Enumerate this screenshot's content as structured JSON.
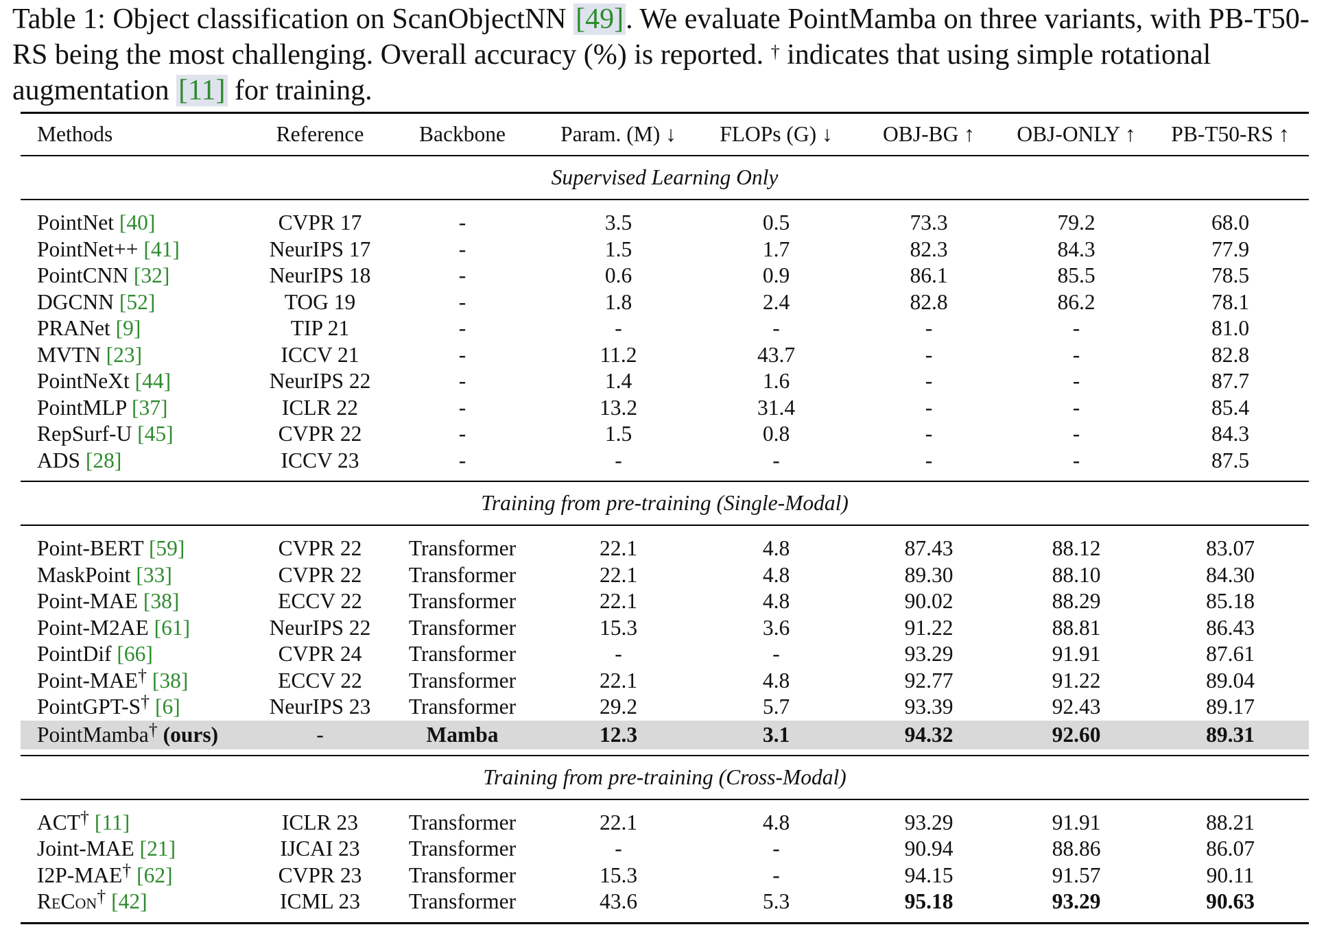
{
  "caption": {
    "prefix": "Table 1: Object classification on ScanObjectNN ",
    "cite1": "[49]",
    "mid": ". We evaluate PointMamba on three variants, with PB-T50-RS being the most challenging. Overall accuracy (%) is reported. ",
    "dagger": "†",
    "mid2": " indicates that using simple rotational augmentation ",
    "cite2": "[11]",
    "suffix": " for training."
  },
  "headers": [
    "Methods",
    "Reference",
    "Backbone",
    "Param. (M) ↓",
    "FLOPs (G) ↓",
    "OBJ-BG ↑",
    "OBJ-ONLY ↑",
    "PB-T50-RS ↑"
  ],
  "sections": [
    {
      "title": "Supervised Learning Only"
    },
    {
      "title": "Training from pre-training (Single-Modal)"
    },
    {
      "title": "Training from pre-training (Cross-Modal)"
    }
  ],
  "supervised": [
    {
      "name": "PointNet",
      "cite": "[40]",
      "ref": "CVPR 17",
      "bb": "-",
      "param": "3.5",
      "flops": "0.5",
      "bg": "73.3",
      "only": "79.2",
      "pb": "68.0"
    },
    {
      "name": "PointNet++",
      "cite": "[41]",
      "ref": "NeurIPS 17",
      "bb": "-",
      "param": "1.5",
      "flops": "1.7",
      "bg": "82.3",
      "only": "84.3",
      "pb": "77.9"
    },
    {
      "name": "PointCNN",
      "cite": "[32]",
      "ref": "NeurIPS 18",
      "bb": "-",
      "param": "0.6",
      "flops": "0.9",
      "bg": "86.1",
      "only": "85.5",
      "pb": "78.5"
    },
    {
      "name": "DGCNN",
      "cite": "[52]",
      "ref": "TOG 19",
      "bb": "-",
      "param": "1.8",
      "flops": "2.4",
      "bg": "82.8",
      "only": "86.2",
      "pb": "78.1"
    },
    {
      "name": "PRANet",
      "cite": "[9]",
      "ref": "TIP 21",
      "bb": "-",
      "param": "-",
      "flops": "-",
      "bg": "-",
      "only": "-",
      "pb": "81.0"
    },
    {
      "name": "MVTN",
      "cite": "[23]",
      "ref": "ICCV 21",
      "bb": "-",
      "param": "11.2",
      "flops": "43.7",
      "bg": "-",
      "only": "-",
      "pb": "82.8"
    },
    {
      "name": "PointNeXt",
      "cite": "[44]",
      "ref": "NeurIPS 22",
      "bb": "-",
      "param": "1.4",
      "flops": "1.6",
      "bg": "-",
      "only": "-",
      "pb": "87.7"
    },
    {
      "name": "PointMLP",
      "cite": "[37]",
      "ref": "ICLR 22",
      "bb": "-",
      "param": "13.2",
      "flops": "31.4",
      "bg": "-",
      "only": "-",
      "pb": "85.4"
    },
    {
      "name": "RepSurf-U",
      "cite": "[45]",
      "ref": "CVPR 22",
      "bb": "-",
      "param": "1.5",
      "flops": "0.8",
      "bg": "-",
      "only": "-",
      "pb": "84.3"
    },
    {
      "name": "ADS",
      "cite": "[28]",
      "ref": "ICCV 23",
      "bb": "-",
      "param": "-",
      "flops": "-",
      "bg": "-",
      "only": "-",
      "pb": "87.5"
    }
  ],
  "single": [
    {
      "name": "Point-BERT",
      "cite": "[59]",
      "ref": "CVPR 22",
      "bb": "Transformer",
      "param": "22.1",
      "flops": "4.8",
      "bg": "87.43",
      "only": "88.12",
      "pb": "83.07"
    },
    {
      "name": "MaskPoint",
      "cite": "[33]",
      "ref": "CVPR 22",
      "bb": "Transformer",
      "param": "22.1",
      "flops": "4.8",
      "bg": "89.30",
      "only": "88.10",
      "pb": "84.30"
    },
    {
      "name": "Point-MAE",
      "cite": "[38]",
      "ref": "ECCV 22",
      "bb": "Transformer",
      "param": "22.1",
      "flops": "4.8",
      "bg": "90.02",
      "only": "88.29",
      "pb": "85.18"
    },
    {
      "name": "Point-M2AE",
      "cite": "[61]",
      "ref": "NeurIPS 22",
      "bb": "Transformer",
      "param": "15.3",
      "flops": "3.6",
      "bg": "91.22",
      "only": "88.81",
      "pb": "86.43"
    },
    {
      "name": "PointDif",
      "cite": "[66]",
      "ref": "CVPR 24",
      "bb": "Transformer",
      "param": "-",
      "flops": "-",
      "bg": "93.29",
      "only": "91.91",
      "pb": "87.61"
    },
    {
      "name": "Point-MAE",
      "dagger": "†",
      "cite": "[38]",
      "ref": "ECCV 22",
      "bb": "Transformer",
      "param": "22.1",
      "flops": "4.8",
      "bg": "92.77",
      "only": "91.22",
      "pb": "89.04"
    },
    {
      "name": "PointGPT-S",
      "dagger": "†",
      "cite": "[6]",
      "ref": "NeurIPS 23",
      "bb": "Transformer",
      "param": "29.2",
      "flops": "5.7",
      "bg": "93.39",
      "only": "92.43",
      "pb": "89.17"
    }
  ],
  "ours": {
    "name": "PointMamba",
    "dagger": "†",
    "tag": "(ours)",
    "ref": "-",
    "bb": "Mamba",
    "param": "12.3",
    "flops": "3.1",
    "bg": "94.32",
    "only": "92.60",
    "pb": "89.31"
  },
  "cross": [
    {
      "name": "ACT",
      "dagger": "†",
      "cite": "[11]",
      "ref": "ICLR 23",
      "bb": "Transformer",
      "param": "22.1",
      "flops": "4.8",
      "bg": "93.29",
      "only": "91.91",
      "pb": "88.21"
    },
    {
      "name": "Joint-MAE",
      "cite": "[21]",
      "ref": "IJCAI 23",
      "bb": "Transformer",
      "param": "-",
      "flops": "-",
      "bg": "90.94",
      "only": "88.86",
      "pb": "86.07"
    },
    {
      "name": "I2P-MAE",
      "dagger": "†",
      "cite": "[62]",
      "ref": "CVPR 23",
      "bb": "Transformer",
      "param": "15.3",
      "flops": "-",
      "bg": "94.15",
      "only": "91.57",
      "pb": "90.11"
    },
    {
      "name": "ReCon",
      "dagger": "†",
      "cite": "[42]",
      "ref": "ICML 23",
      "bb": "Transformer",
      "param": "43.6",
      "flops": "5.3",
      "bg": "95.18",
      "only": "93.29",
      "pb": "90.63",
      "bold_cols": [
        "bg",
        "only",
        "pb"
      ]
    }
  ]
}
